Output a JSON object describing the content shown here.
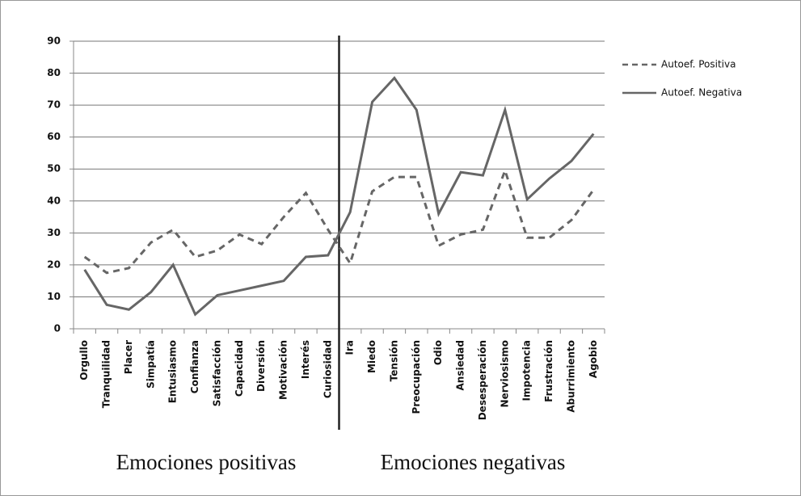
{
  "chart_data": {
    "type": "line",
    "categories": [
      "Orgullo",
      "Tranquilidad",
      "Placer",
      "Simpatía",
      "Entusiasmo",
      "Confianza",
      "Satisfacción",
      "Capacidad",
      "Diversión",
      "Motivación",
      "Interés",
      "Curiosidad",
      "Ira",
      "Miedo",
      "Tensión",
      "Preocupación",
      "Odio",
      "Ansiedad",
      "Desesperación",
      "Nerviosismo",
      "Impotencia",
      "Frustración",
      "Aburrimiento",
      "Agobio"
    ],
    "series": [
      {
        "name": "Autoef. Positiva",
        "color": "#666666",
        "dash": true,
        "values": [
          22.5,
          17.5,
          19,
          27,
          31,
          22.5,
          24.5,
          29.5,
          26.5,
          35,
          42.5,
          31,
          20.5,
          43,
          47.5,
          47.5,
          26,
          29.5,
          31,
          49.5,
          28.5,
          28.5,
          34,
          43.5
        ]
      },
      {
        "name": "Autoef. Negativa",
        "color": "#666666",
        "dash": false,
        "values": [
          18.5,
          7.5,
          6,
          11.5,
          20,
          4.5,
          10.5,
          12,
          13.5,
          15,
          22.5,
          23,
          36.5,
          71,
          78.5,
          68.5,
          36,
          49,
          48,
          68.5,
          40.5,
          47,
          52.5,
          61
        ]
      }
    ],
    "ylim": [
      0,
      90
    ],
    "yticks": [
      0,
      10,
      20,
      30,
      40,
      50,
      60,
      70,
      80,
      90
    ],
    "grid": true,
    "groups": [
      "Emociones positivas",
      "Emociones negativas"
    ]
  }
}
